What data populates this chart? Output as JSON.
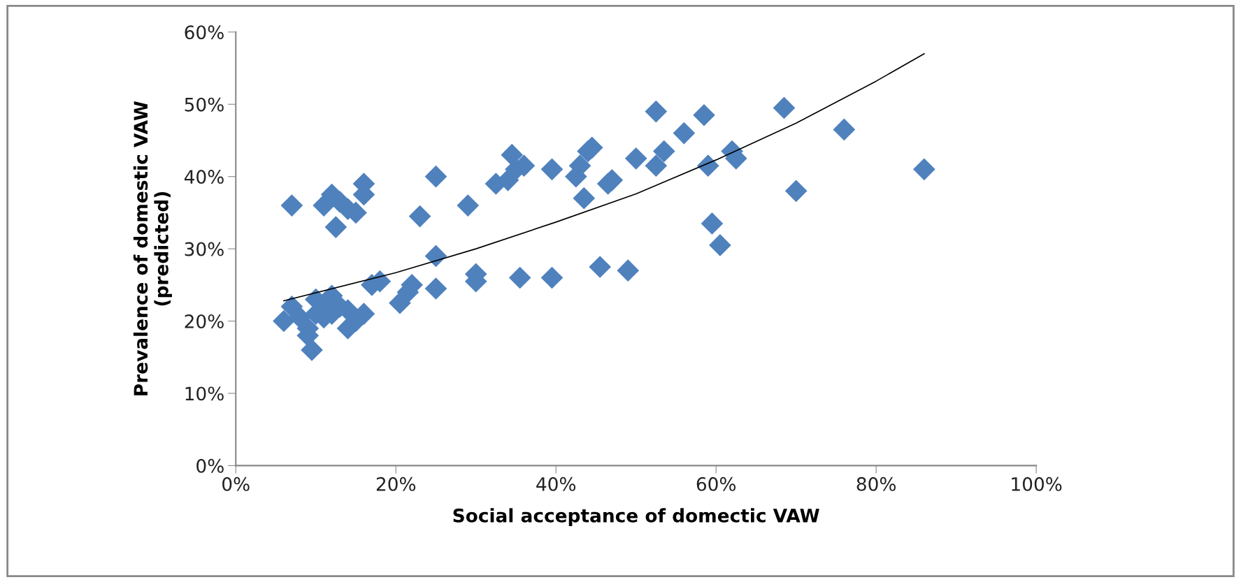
{
  "chart_data": {
    "type": "scatter",
    "xlabel": "Social acceptance of domectic VAW",
    "ylabel": "Prevalence of domestic VAW\n(predicted)",
    "xlim": [
      0,
      100
    ],
    "ylim": [
      0,
      60
    ],
    "xticks": [
      {
        "value": 0,
        "label": "0%"
      },
      {
        "value": 20,
        "label": "20%"
      },
      {
        "value": 40,
        "label": "40%"
      },
      {
        "value": 60,
        "label": "60%"
      },
      {
        "value": 80,
        "label": "80%"
      },
      {
        "value": 100,
        "label": "100%"
      }
    ],
    "yticks": [
      {
        "value": 0,
        "label": "0%"
      },
      {
        "value": 10,
        "label": "10%"
      },
      {
        "value": 20,
        "label": "20%"
      },
      {
        "value": 30,
        "label": "30%"
      },
      {
        "value": 40,
        "label": "40%"
      },
      {
        "value": 50,
        "label": "50%"
      },
      {
        "value": 60,
        "label": "60%"
      }
    ],
    "grid": false,
    "legend": false,
    "marker": "diamond",
    "series": [
      {
        "color": "#4f81bd",
        "x": [
          7,
          12,
          11,
          13,
          14,
          15,
          16,
          16,
          12.5,
          6,
          7,
          8,
          9,
          9,
          9.5,
          10,
          10,
          11,
          11,
          12,
          12,
          13,
          14,
          14,
          15,
          16,
          17,
          18,
          20.5,
          21.5,
          22,
          25,
          23,
          25,
          25,
          29,
          30,
          30,
          32.5,
          34,
          34.5,
          35,
          36,
          35.5,
          39.5,
          39.5,
          42.5,
          43,
          43.5,
          44,
          44.5,
          46.5,
          47,
          45.5,
          49,
          50,
          52.5,
          52.5,
          53.5,
          56,
          58.5,
          59,
          59.5,
          60.5,
          62,
          62.5,
          68.5,
          70,
          76,
          86
        ],
        "values": [
          36,
          37.5,
          36,
          36.5,
          35.5,
          35,
          39,
          37.5,
          33,
          20,
          22,
          20.5,
          18,
          19,
          16,
          23,
          21,
          22,
          20.5,
          23.5,
          21,
          22,
          19,
          21.5,
          20,
          21,
          25,
          25.5,
          22.5,
          24,
          25,
          24.5,
          34.5,
          29,
          40,
          36,
          26.5,
          25.5,
          39,
          39.5,
          43,
          41,
          41.5,
          26,
          26,
          41,
          40,
          41.5,
          37,
          43.5,
          44,
          39,
          39.5,
          27.5,
          27,
          42.5,
          49,
          41.5,
          43.5,
          46,
          48.5,
          41.5,
          33.5,
          30.5,
          43.5,
          42.5,
          49.5,
          38,
          46.5,
          41
        ]
      },
      {
        "type": "line",
        "color": "#000000",
        "marker": "none",
        "line_style": "solid",
        "x": [
          6,
          20,
          30,
          40,
          50,
          60,
          70,
          80,
          86
        ],
        "values": [
          22.8,
          26.7,
          30.0,
          33.7,
          37.6,
          42.3,
          47.4,
          53.2,
          57
        ]
      }
    ]
  }
}
